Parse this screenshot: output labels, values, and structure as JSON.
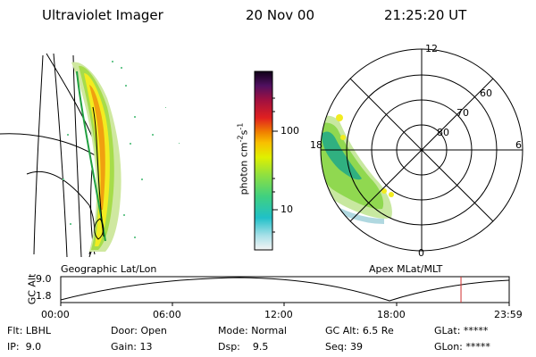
{
  "header": {
    "instrument": "Ultraviolet Imager",
    "date": "20 Nov 00",
    "time": "21:25:20 UT"
  },
  "colorbar": {
    "unit_label": "photon cm",
    "unit_exp1": "-2",
    "unit_s": "s",
    "unit_exp2": "-1",
    "ticks": [
      "100",
      "10"
    ]
  },
  "geo_panel": {
    "caption": "Geographic Lat/Lon"
  },
  "polar_panel": {
    "caption": "Apex MLat/MLT",
    "mlt_labels": {
      "top": "12",
      "left": "18",
      "right": "6",
      "bottom": "0"
    },
    "lat_labels": [
      "60",
      "70",
      "80"
    ]
  },
  "timeline": {
    "ylabel": "GC Alt",
    "ymax": "9.0",
    "ymin": "1.8",
    "ticks": [
      "00:00",
      "06:00",
      "12:00",
      "18:00",
      "23:59"
    ],
    "marker_hour": 21.42,
    "marker_color": "#d03030"
  },
  "footer": {
    "flt_label": "Flt:",
    "flt_value": "LBHL",
    "ip_label": "IP:",
    "ip_value": "9.0",
    "door_label": "Door:",
    "door_value": "Open",
    "gain_label": "Gain:",
    "gain_value": "13",
    "mode_label": "Mode:",
    "mode_value": "Normal",
    "dsp_label": "Dsp:",
    "dsp_value": "9.5",
    "gcalt_label": "GC Alt:",
    "gcalt_value": "6.5 Re",
    "seq_label": "Seq:",
    "seq_value": "39",
    "glat_label": "GLat:",
    "glat_value": "*****",
    "glon_label": "GLon:",
    "glon_value": "*****"
  }
}
